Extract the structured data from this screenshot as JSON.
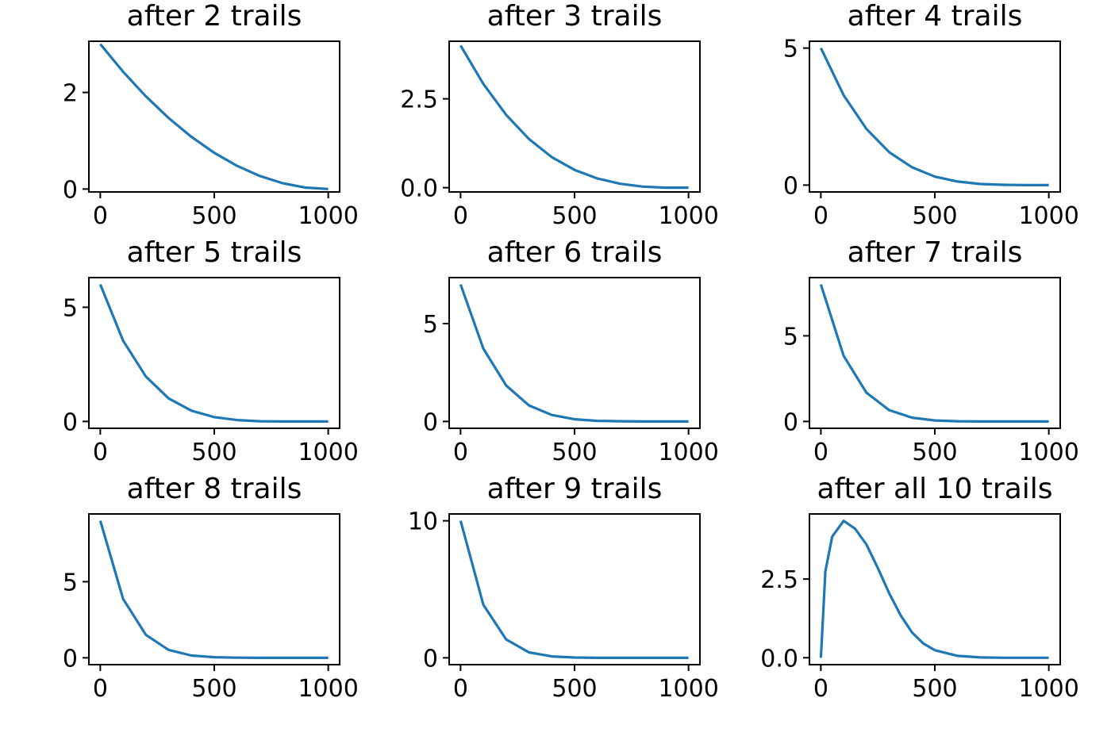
{
  "colors": {
    "line": "#1f77b4",
    "axes": "#000000",
    "background": "#ffffff"
  },
  "chart_data": [
    {
      "type": "line",
      "title": "after 2 trails",
      "xlabel": "",
      "ylabel": "",
      "xlim": [
        -50,
        1050
      ],
      "ylim": [
        -0.06,
        3.06
      ],
      "xticks": [
        0,
        500,
        1000
      ],
      "xtick_labels": [
        "0",
        "500",
        "1000"
      ],
      "yticks": [
        0,
        2
      ],
      "ytick_labels": [
        "0",
        "2"
      ],
      "grid": false,
      "series": [
        {
          "x": [
            0,
            100,
            200,
            300,
            400,
            500,
            600,
            700,
            800,
            900,
            1000
          ],
          "y": [
            3.0,
            2.43,
            1.92,
            1.47,
            1.08,
            0.75,
            0.48,
            0.27,
            0.12,
            0.03,
            0.0
          ]
        }
      ]
    },
    {
      "type": "line",
      "title": "after 3 trails",
      "xlabel": "",
      "ylabel": "",
      "xlim": [
        -50,
        1050
      ],
      "ylim": [
        -0.12,
        4.12
      ],
      "xticks": [
        0,
        500,
        1000
      ],
      "xtick_labels": [
        "0",
        "500",
        "1000"
      ],
      "yticks": [
        0,
        2.5
      ],
      "ytick_labels": [
        "0.0",
        "2.5"
      ],
      "grid": false,
      "series": [
        {
          "x": [
            0,
            100,
            200,
            300,
            400,
            500,
            600,
            700,
            800,
            900,
            1000
          ],
          "y": [
            4.0,
            2.92,
            2.05,
            1.37,
            0.86,
            0.5,
            0.26,
            0.11,
            0.03,
            0.0,
            0.0
          ]
        }
      ]
    },
    {
      "type": "line",
      "title": "after 4 trails",
      "xlabel": "",
      "ylabel": "",
      "xlim": [
        -50,
        1050
      ],
      "ylim": [
        -0.25,
        5.25
      ],
      "xticks": [
        0,
        500,
        1000
      ],
      "xtick_labels": [
        "0",
        "500",
        "1000"
      ],
      "yticks": [
        0,
        5
      ],
      "ytick_labels": [
        "0",
        "5"
      ],
      "grid": false,
      "series": [
        {
          "x": [
            0,
            100,
            200,
            300,
            400,
            500,
            600,
            700,
            800,
            900,
            1000
          ],
          "y": [
            5.0,
            3.28,
            2.05,
            1.2,
            0.65,
            0.31,
            0.13,
            0.04,
            0.01,
            0.0,
            0.0
          ]
        }
      ]
    },
    {
      "type": "line",
      "title": "after 5 trails",
      "xlabel": "",
      "ylabel": "",
      "xlim": [
        -50,
        1050
      ],
      "ylim": [
        -0.3,
        6.3
      ],
      "xticks": [
        0,
        500,
        1000
      ],
      "xtick_labels": [
        "0",
        "500",
        "1000"
      ],
      "yticks": [
        0,
        5
      ],
      "ytick_labels": [
        "0",
        "5"
      ],
      "grid": false,
      "series": [
        {
          "x": [
            0,
            100,
            200,
            300,
            400,
            500,
            600,
            700,
            800,
            900,
            1000
          ],
          "y": [
            6.0,
            3.54,
            1.97,
            1.01,
            0.47,
            0.19,
            0.06,
            0.01,
            0.0,
            0.0,
            0.0
          ]
        }
      ]
    },
    {
      "type": "line",
      "title": "after 6 trails",
      "xlabel": "",
      "ylabel": "",
      "xlim": [
        -50,
        1050
      ],
      "ylim": [
        -0.35,
        7.35
      ],
      "xticks": [
        0,
        500,
        1000
      ],
      "xtick_labels": [
        "0",
        "500",
        "1000"
      ],
      "yticks": [
        0,
        5
      ],
      "ytick_labels": [
        "0",
        "5"
      ],
      "grid": false,
      "series": [
        {
          "x": [
            0,
            100,
            200,
            300,
            400,
            500,
            600,
            700,
            800,
            900,
            1000
          ],
          "y": [
            7.0,
            3.72,
            1.84,
            0.82,
            0.33,
            0.11,
            0.03,
            0.01,
            0.0,
            0.0,
            0.0
          ]
        }
      ]
    },
    {
      "type": "line",
      "title": "after 7 trails",
      "xlabel": "",
      "ylabel": "",
      "xlim": [
        -50,
        1050
      ],
      "ylim": [
        -0.4,
        8.4
      ],
      "xticks": [
        0,
        500,
        1000
      ],
      "xtick_labels": [
        "0",
        "500",
        "1000"
      ],
      "yticks": [
        0,
        5
      ],
      "ytick_labels": [
        "0",
        "5"
      ],
      "grid": false,
      "series": [
        {
          "x": [
            0,
            100,
            200,
            300,
            400,
            500,
            600,
            700,
            800,
            900,
            1000
          ],
          "y": [
            8.0,
            3.83,
            1.68,
            0.66,
            0.22,
            0.06,
            0.01,
            0.0,
            0.0,
            0.0,
            0.0
          ]
        }
      ]
    },
    {
      "type": "line",
      "title": "after 8 trails",
      "xlabel": "",
      "ylabel": "",
      "xlim": [
        -50,
        1050
      ],
      "ylim": [
        -0.45,
        9.45
      ],
      "xticks": [
        0,
        500,
        1000
      ],
      "xtick_labels": [
        "0",
        "500",
        "1000"
      ],
      "yticks": [
        0,
        5
      ],
      "ytick_labels": [
        "0",
        "5"
      ],
      "grid": false,
      "series": [
        {
          "x": [
            0,
            100,
            200,
            300,
            400,
            500,
            600,
            700,
            800,
            900,
            1000
          ],
          "y": [
            9.0,
            3.87,
            1.51,
            0.52,
            0.15,
            0.04,
            0.01,
            0.0,
            0.0,
            0.0,
            0.0
          ]
        }
      ]
    },
    {
      "type": "line",
      "title": "after 9 trails",
      "xlabel": "",
      "ylabel": "",
      "xlim": [
        -50,
        1050
      ],
      "ylim": [
        -0.5,
        10.5
      ],
      "xticks": [
        0,
        500,
        1000
      ],
      "xtick_labels": [
        "0",
        "500",
        "1000"
      ],
      "yticks": [
        0,
        10
      ],
      "ytick_labels": [
        "0",
        "10"
      ],
      "grid": false,
      "series": [
        {
          "x": [
            0,
            100,
            200,
            300,
            400,
            500,
            600,
            700,
            800,
            900,
            1000
          ],
          "y": [
            10.0,
            3.87,
            1.34,
            0.4,
            0.1,
            0.02,
            0.0,
            0.0,
            0.0,
            0.0,
            0.0
          ]
        }
      ]
    },
    {
      "type": "line",
      "title": "after all 10 trails",
      "xlabel": "",
      "ylabel": "",
      "xlim": [
        -50,
        1050
      ],
      "ylim": [
        -0.22,
        4.57
      ],
      "xticks": [
        0,
        500,
        1000
      ],
      "xtick_labels": [
        "0",
        "500",
        "1000"
      ],
      "yticks": [
        0,
        2.5
      ],
      "ytick_labels": [
        "0.0",
        "2.5"
      ],
      "grid": false,
      "series": [
        {
          "x": [
            0,
            20,
            50,
            100,
            150,
            200,
            250,
            300,
            350,
            400,
            450,
            500,
            600,
            700,
            800,
            900,
            1000
          ],
          "y": [
            0.0,
            2.75,
            3.85,
            4.35,
            4.1,
            3.6,
            2.85,
            2.05,
            1.35,
            0.8,
            0.45,
            0.24,
            0.06,
            0.01,
            0.0,
            0.0,
            0.0
          ]
        }
      ]
    }
  ]
}
